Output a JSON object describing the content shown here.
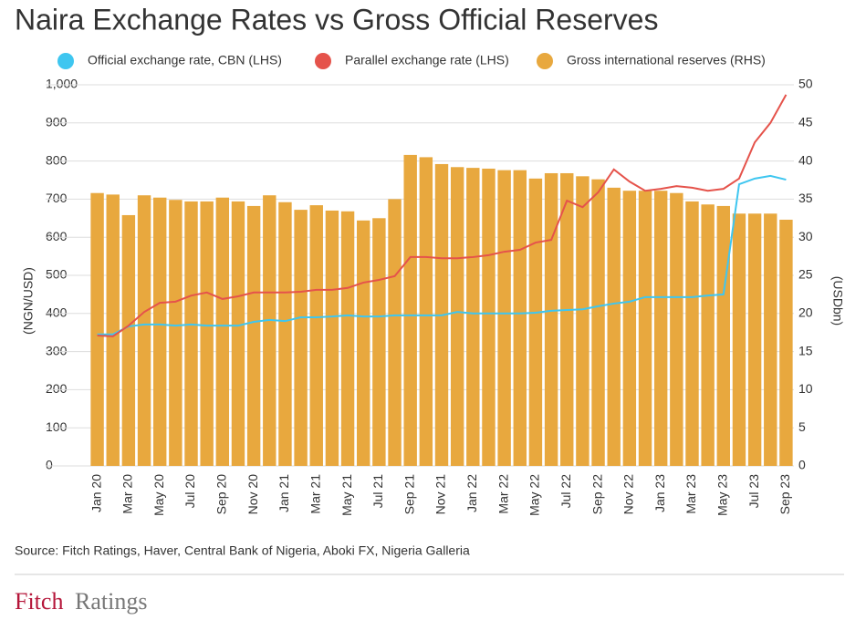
{
  "chart_data": {
    "type": "combo",
    "title": "Naira Exchange Rates vs Gross Official Reserves",
    "ylabel": "(NGN/USD)",
    "y2label": "(USDbn)",
    "source": "Source: Fitch Ratings, Haver, Central Bank of Nigeria, Aboki FX, Nigeria Galleria",
    "categories": [
      "Jan 20",
      null,
      "Mar 20",
      null,
      "May 20",
      null,
      "Jul 20",
      null,
      "Sep 20",
      null,
      "Nov 20",
      null,
      "Jan 21",
      null,
      "Mar 21",
      null,
      "May 21",
      null,
      "Jul 21",
      null,
      "Sep 21",
      null,
      "Nov 21",
      null,
      "Jan 22",
      null,
      "Mar 22",
      null,
      "May 22",
      null,
      "Jul 22",
      null,
      "Sep 22",
      null,
      "Nov 22",
      null,
      "Jan 23",
      null,
      "Mar 23",
      null,
      "May 23",
      null,
      "Jul 23",
      null,
      "Sep 23"
    ],
    "series": [
      {
        "name": "Official exchange rate, CBN (LHS)",
        "type": "line",
        "color": "#3ec6f0",
        "values": [
          345,
          345,
          366,
          371,
          371,
          368,
          371,
          368,
          368,
          368,
          378,
          383,
          380,
          390,
          390,
          392,
          395,
          392,
          392,
          395,
          395,
          395,
          395,
          404,
          400,
          400,
          400,
          400,
          402,
          407,
          409,
          411,
          419,
          426,
          431,
          443,
          443,
          443,
          443,
          447,
          450,
          739,
          754,
          761,
          751
        ]
      },
      {
        "name": "Parallel exchange rate (LHS)",
        "type": "line",
        "color": "#e5534b",
        "values": [
          342,
          340,
          368,
          404,
          428,
          431,
          447,
          455,
          438,
          445,
          455,
          455,
          455,
          457,
          462,
          462,
          467,
          481,
          488,
          498,
          548,
          548,
          545,
          545,
          548,
          553,
          562,
          567,
          586,
          593,
          696,
          679,
          718,
          778,
          746,
          722,
          727,
          734,
          730,
          722,
          727,
          754,
          849,
          900,
          974
        ]
      },
      {
        "name": "Gross international reserves (RHS)",
        "type": "bar",
        "axis": "y2",
        "color": "#e8a83e",
        "values": [
          35.8,
          35.6,
          32.9,
          35.5,
          35.2,
          34.9,
          34.7,
          34.7,
          35.2,
          34.7,
          34.1,
          35.5,
          34.6,
          33.6,
          34.2,
          33.5,
          33.4,
          32.2,
          32.5,
          35.0,
          40.8,
          40.5,
          39.6,
          39.2,
          39.1,
          39.0,
          38.8,
          38.8,
          37.7,
          38.4,
          38.4,
          38.0,
          37.6,
          36.5,
          36.1,
          36.1,
          36.1,
          35.8,
          34.7,
          34.3,
          34.1,
          33.1,
          33.1,
          33.1,
          32.3
        ]
      }
    ],
    "ylim": [
      0,
      1000
    ],
    "yticks": [
      0,
      100,
      200,
      300,
      400,
      500,
      600,
      700,
      800,
      900,
      {
        "value": 1000,
        "label": "1,000"
      }
    ],
    "y2lim": [
      0,
      50
    ],
    "y2ticks": [
      0,
      5,
      10,
      15,
      20,
      25,
      30,
      35,
      40,
      45,
      50
    ],
    "grid": true,
    "legend": "top"
  },
  "logo": [
    "Fitch",
    "Ratings"
  ]
}
